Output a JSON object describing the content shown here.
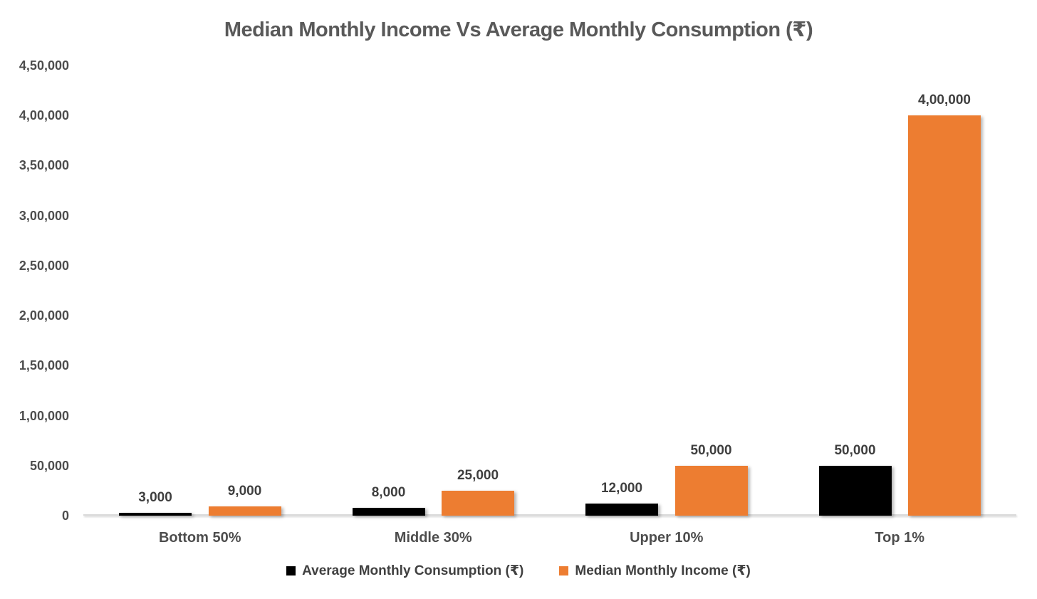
{
  "chart_data": {
    "type": "bar",
    "title": "Median Monthly Income Vs Average Monthly Consumption (₹)",
    "categories": [
      "Bottom 50%",
      "Middle 30%",
      "Upper 10%",
      "Top 1%"
    ],
    "series": [
      {
        "name": "Average Monthly Consumption (₹)",
        "color": "#000000",
        "values": [
          3000,
          8000,
          12000,
          50000
        ],
        "data_labels": [
          "3,000",
          "8,000",
          "12,000",
          "50,000"
        ]
      },
      {
        "name": "Median Monthly Income (₹)",
        "color": "#ED7D31",
        "values": [
          9000,
          25000,
          50000,
          400000
        ],
        "data_labels": [
          "9,000",
          "25,000",
          "50,000",
          "4,00,000"
        ]
      }
    ],
    "y_axis": {
      "min": 0,
      "max": 450000,
      "step": 50000,
      "tick_labels": [
        "0",
        "50,000",
        "1,00,000",
        "1,50,000",
        "2,00,000",
        "2,50,000",
        "3,00,000",
        "3,50,000",
        "4,00,000",
        "4,50,000"
      ]
    },
    "x_axis_line_color": "#D9D9D9",
    "grid": false,
    "legend_position": "bottom",
    "background_color": "#FFFFFF"
  }
}
